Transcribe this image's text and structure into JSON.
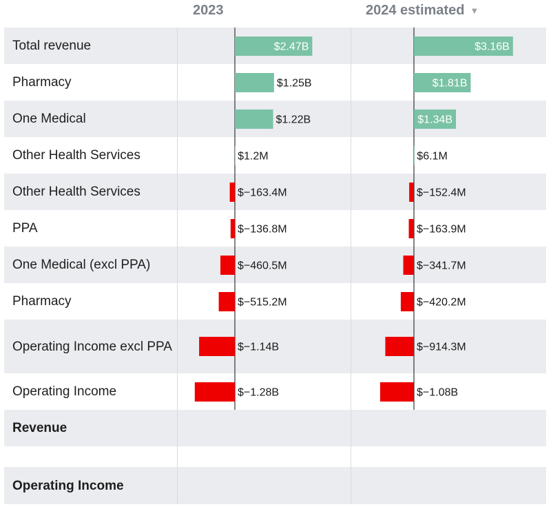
{
  "chart_data": {
    "type": "bar",
    "title": "",
    "xlabel": "",
    "ylabel": "",
    "columns": [
      {
        "key": "c2023",
        "title": "2023",
        "sortable": false
      },
      {
        "key": "c2024",
        "title": "2024 estimated",
        "sortable": true,
        "sort_icon": "triangle-down-icon"
      }
    ],
    "categories": [
      "Total revenue",
      "Pharmacy",
      "One Medical",
      "Other Health Services",
      "Other Health Services",
      "PPA",
      "One Medical (excl PPA)",
      "Pharmacy",
      "Operating Income excl PPA",
      "Operating Income"
    ],
    "series": [
      {
        "name": "2023",
        "values_usd_millions": [
          2470,
          1250,
          1220,
          1.2,
          -163.4,
          -136.8,
          -460.5,
          -515.2,
          -1140,
          -1280
        ],
        "labels": [
          "$2.47B",
          "$1.25B",
          "$1.22B",
          "$1.2M",
          "$−163.4M",
          "$−136.8M",
          "$−460.5M",
          "$−515.2M",
          "$−1.14B",
          "$−1.28B"
        ]
      },
      {
        "name": "2024 estimated",
        "values_usd_millions": [
          3160,
          1810,
          1340,
          6.1,
          -152.4,
          -163.9,
          -341.7,
          -420.2,
          -914.3,
          -1080
        ],
        "labels": [
          "$3.16B",
          "$1.81B",
          "$1.34B",
          "$6.1M",
          "$−152.4M",
          "$−163.9M",
          "$−341.7M",
          "$−420.2M",
          "$−914.3M",
          "$−1.08B"
        ]
      }
    ],
    "group_rows": [
      "Revenue",
      "",
      "Operating Income"
    ],
    "colors": {
      "positive": "#79c2a5",
      "negative": "#ee0000",
      "axis": "#333333",
      "label_dark": "#1a1a1a",
      "label_light": "#ffffff",
      "row_shade": "#ebecef"
    }
  }
}
